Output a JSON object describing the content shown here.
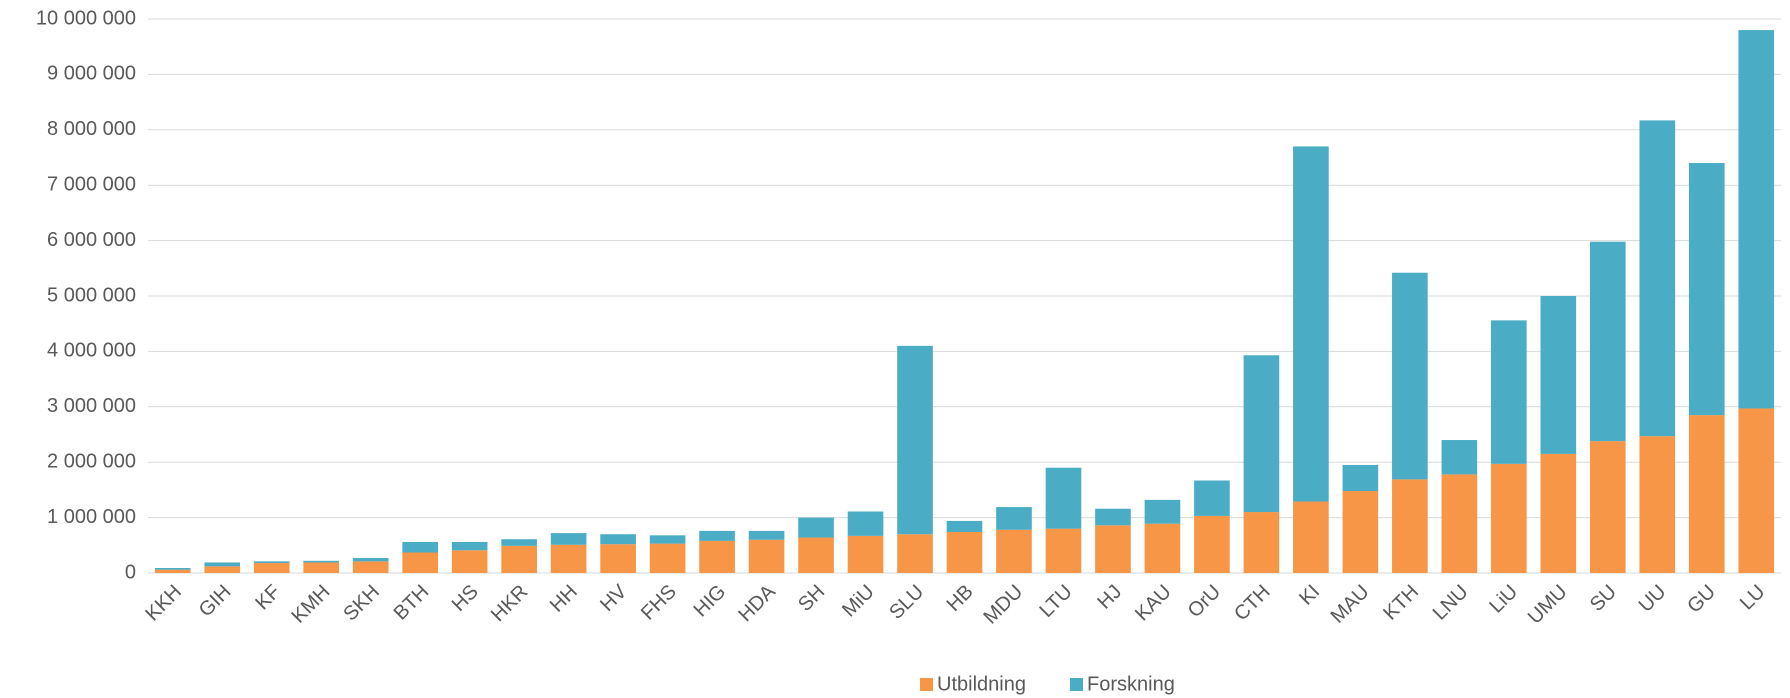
{
  "chart_data": {
    "type": "stacked_bar",
    "categories": [
      "KKH",
      "GIH",
      "KF",
      "KMH",
      "SKH",
      "BTH",
      "HS",
      "HKR",
      "HH",
      "HV",
      "FHS",
      "HIG",
      "HDA",
      "SH",
      "MiU",
      "SLU",
      "HB",
      "MDU",
      "LTU",
      "HJ",
      "KAU",
      "OrU",
      "CTH",
      "KI",
      "MAU",
      "KTH",
      "LNU",
      "LiU",
      "UMU",
      "SU",
      "UU",
      "GU",
      "LU"
    ],
    "series": [
      {
        "name": "Utbildning",
        "color": "#f79646",
        "values": [
          60000,
          120000,
          180000,
          190000,
          210000,
          370000,
          410000,
          490000,
          510000,
          520000,
          530000,
          580000,
          600000,
          640000,
          670000,
          700000,
          740000,
          780000,
          800000,
          860000,
          890000,
          1030000,
          1100000,
          1290000,
          1480000,
          1690000,
          1780000,
          1970000,
          2150000,
          2380000,
          2470000,
          2850000,
          2970000
        ]
      },
      {
        "name": "Forskning",
        "color": "#4bacc6",
        "values": [
          30000,
          70000,
          30000,
          30000,
          60000,
          190000,
          150000,
          120000,
          210000,
          180000,
          150000,
          180000,
          160000,
          360000,
          440000,
          3400000,
          200000,
          410000,
          1100000,
          300000,
          430000,
          640000,
          2830000,
          6410000,
          470000,
          3730000,
          620000,
          2590000,
          2850000,
          3600000,
          5700000,
          4550000,
          6830000
        ]
      }
    ],
    "ylim": [
      0,
      10000000
    ],
    "yticks": [
      0,
      {
        "value": 1000000,
        "label": "1 000 000"
      },
      {
        "value": 2000000,
        "label": "2 000 000"
      },
      {
        "value": 3000000,
        "label": "3 000 000"
      },
      {
        "value": 4000000,
        "label": "4 000 000"
      },
      {
        "value": 5000000,
        "label": "5 000 000"
      },
      {
        "value": 6000000,
        "label": "6 000 000"
      },
      {
        "value": 7000000,
        "label": "7 000 000"
      },
      {
        "value": 8000000,
        "label": "8 000 000"
      },
      {
        "value": 9000000,
        "label": "9 000 000"
      },
      {
        "value": 10000000,
        "label": "10 000 000"
      }
    ],
    "grid": true,
    "legend": "bottom"
  }
}
